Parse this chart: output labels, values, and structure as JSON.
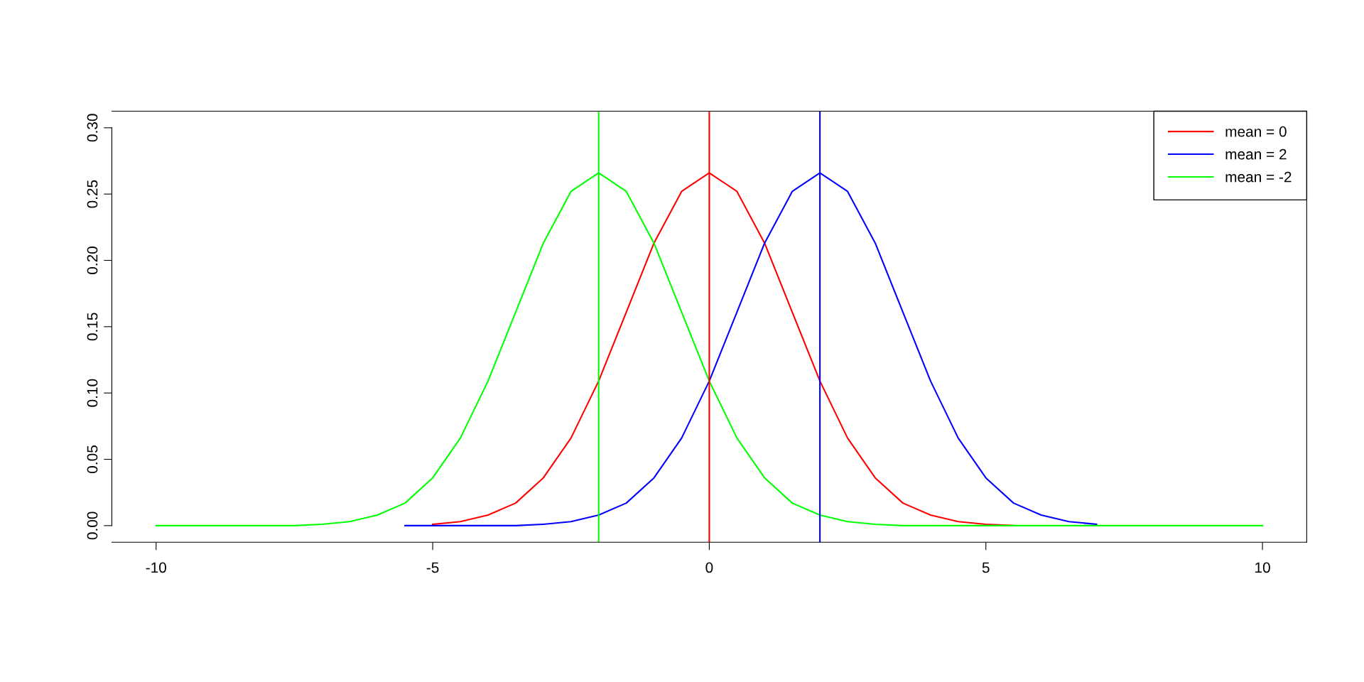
{
  "chart_data": {
    "type": "line",
    "x": [
      -10,
      -9.5,
      -9,
      -8.5,
      -8,
      -7.5,
      -7,
      -6.5,
      -6,
      -5.5,
      -5,
      -4.5,
      -4,
      -3.5,
      -3,
      -2.5,
      -2,
      -1.5,
      -1,
      -0.5,
      0,
      0.5,
      1,
      1.5,
      2,
      2.5,
      3,
      3.5,
      4,
      4.5,
      5,
      5.5,
      6,
      6.5,
      7,
      7.5,
      8,
      8.5,
      9,
      9.5,
      10
    ],
    "series": [
      {
        "name": "mean = 0",
        "color": "#ff0000",
        "values": [
          null,
          null,
          null,
          null,
          null,
          null,
          null,
          null,
          null,
          null,
          0.001,
          0.003,
          0.008,
          0.017,
          0.036,
          0.066,
          0.109,
          0.161,
          0.213,
          0.252,
          0.266,
          0.252,
          0.213,
          0.161,
          0.109,
          0.066,
          0.036,
          0.017,
          0.008,
          0.003,
          0.001,
          0,
          null,
          null,
          null,
          null,
          null,
          null,
          null,
          null,
          null
        ]
      },
      {
        "name": "mean = 2",
        "color": "#0000ff",
        "values": [
          null,
          null,
          null,
          null,
          null,
          null,
          null,
          null,
          null,
          0,
          0,
          0,
          0,
          0,
          0.001,
          0.003,
          0.008,
          0.017,
          0.036,
          0.066,
          0.109,
          0.161,
          0.213,
          0.252,
          0.266,
          0.252,
          0.213,
          0.161,
          0.109,
          0.066,
          0.036,
          0.017,
          0.008,
          0.003,
          0.001,
          null,
          null,
          null,
          null,
          null,
          null
        ]
      },
      {
        "name": "mean = -2",
        "color": "#00ff00",
        "values": [
          0,
          0,
          0,
          0,
          0,
          0,
          0.001,
          0.003,
          0.008,
          0.017,
          0.036,
          0.066,
          0.109,
          0.161,
          0.213,
          0.252,
          0.266,
          0.252,
          0.213,
          0.161,
          0.109,
          0.066,
          0.036,
          0.017,
          0.008,
          0.003,
          0.001,
          0,
          0,
          0,
          0,
          0,
          0,
          0,
          0,
          0,
          0,
          0,
          0,
          0,
          0
        ]
      }
    ],
    "ref_lines": [
      {
        "axis": "x",
        "value": 0,
        "color": "#ff0000"
      },
      {
        "axis": "x",
        "value": 2,
        "color": "#0000ff"
      },
      {
        "axis": "x",
        "value": -2,
        "color": "#00ff00"
      }
    ],
    "xlim": [
      -10.8,
      10.8
    ],
    "xticks": [
      -10,
      -5,
      0,
      5,
      10
    ],
    "ylim": [
      -0.0125,
      0.3125
    ],
    "yticks": [
      {
        "value": 0,
        "label": "0.00"
      },
      {
        "value": 0.05,
        "label": "0.05"
      },
      {
        "value": 0.1,
        "label": "0.10"
      },
      {
        "value": 0.15,
        "label": "0.15"
      },
      {
        "value": 0.2,
        "label": "0.20"
      },
      {
        "value": 0.25,
        "label": "0.25"
      },
      {
        "value": 0.3,
        "label": "0.30"
      }
    ],
    "legend": "top right",
    "marker": "none",
    "line_style": "solid",
    "grid": false
  }
}
